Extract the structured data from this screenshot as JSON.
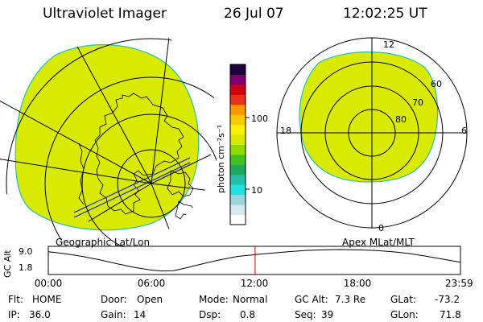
{
  "header": {
    "instrument": "Ultraviolet Imager",
    "date": "26 Jul 07",
    "time": "12:02:25 UT"
  },
  "geo_panel": {
    "label": "Geographic Lat/Lon"
  },
  "apex_panel": {
    "label": "Apex MLat/MLT",
    "mlt_labels": {
      "top": "12",
      "left": "18",
      "right": "6",
      "bottom": "0"
    },
    "lat_labels": [
      "60",
      "70",
      "80"
    ]
  },
  "colorbar": {
    "unit_label": "photon cm⁻²s⁻¹",
    "ticks": [
      "100",
      "10"
    ],
    "scale": "log",
    "colors": [
      "#ffffff",
      "#d9e8ee",
      "#9bd4dc",
      "#20e0e0",
      "#20c0a8",
      "#20a860",
      "#40c020",
      "#90d800",
      "#d8e800",
      "#f8f000",
      "#f8c800",
      "#f89800",
      "#e83018",
      "#d00010",
      "#800070",
      "#200040"
    ]
  },
  "timeline": {
    "ylabel": "GC Alt",
    "yticks": [
      "9.0",
      "1.8"
    ],
    "xticks": [
      "00:00",
      "06:00",
      "12:00",
      "18:00",
      "23:59"
    ],
    "ylim": [
      1.8,
      9.0
    ],
    "current_time_hours": 12.04,
    "marker_color": "#c00000",
    "altitude_profile": [
      [
        0.0,
        8.3
      ],
      [
        1.0,
        7.6
      ],
      [
        2.0,
        6.7
      ],
      [
        3.0,
        5.6
      ],
      [
        4.0,
        4.3
      ],
      [
        5.0,
        3.1
      ],
      [
        6.0,
        2.2
      ],
      [
        6.6,
        1.9
      ],
      [
        7.3,
        2.0
      ],
      [
        8.0,
        2.9
      ],
      [
        9.0,
        4.3
      ],
      [
        10.0,
        5.6
      ],
      [
        11.0,
        6.7
      ],
      [
        12.0,
        7.3
      ],
      [
        13.0,
        7.8
      ],
      [
        14.0,
        8.3
      ],
      [
        15.0,
        8.7
      ],
      [
        16.0,
        8.9
      ],
      [
        17.0,
        9.0
      ],
      [
        18.0,
        8.9
      ],
      [
        19.0,
        8.7
      ],
      [
        20.0,
        8.3
      ],
      [
        21.0,
        7.7
      ],
      [
        22.0,
        6.8
      ],
      [
        23.0,
        5.8
      ],
      [
        23.98,
        4.8
      ]
    ]
  },
  "status": {
    "flt_label": "Flt:",
    "flt_value": "HOME",
    "ip_label": "IP:",
    "ip_value": "36.0",
    "door_label": "Door:",
    "door_value": "Open",
    "gain_label": "Gain:",
    "gain_value": "14",
    "mode_label": "Mode:",
    "mode_value": "Normal",
    "dsp_label": "Dsp:",
    "dsp_value": "0.8",
    "gcalt_label": "GC Alt:",
    "gcalt_value": "7.3 Re",
    "seq_label": "Seq:",
    "seq_value": "39",
    "glat_label": "GLat:",
    "glat_value": "-73.2",
    "glon_label": "GLon:",
    "glon_value": "71.8"
  }
}
